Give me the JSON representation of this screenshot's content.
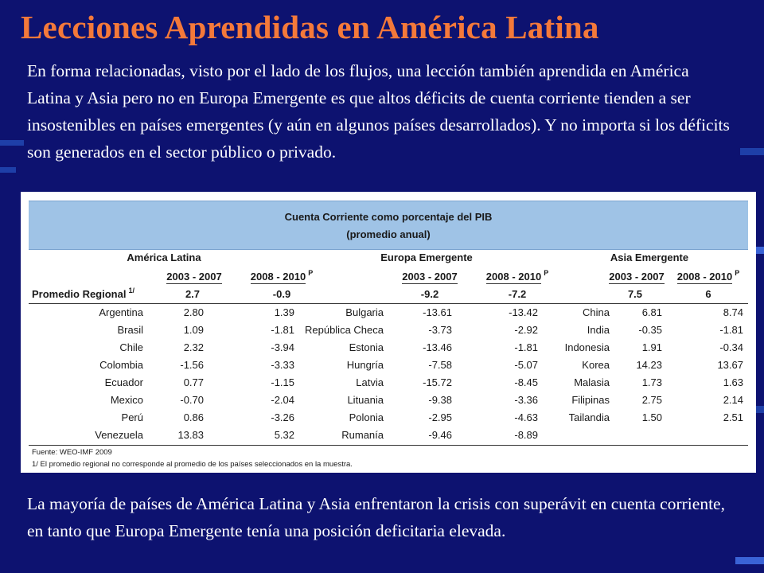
{
  "title": "Lecciones Aprendidas en América Latina",
  "intro": "En forma relacionadas, visto por el lado de los flujos, una lección también aprendida en América Latina y Asia pero no en Europa Emergente es que altos déficits de cuenta corriente tienden a ser insostenibles en países emergentes (y aún en algunos países desarrollados). Y no importa si los déficits son generados en el sector público o privado.",
  "conclusion": "La mayoría de países de América Latina y Asia enfrentaron la crisis con superávit en cuenta corriente, en tanto que Europa Emergente tenía una posición deficitaria elevada.",
  "table": {
    "title_line1": "Cuenta Corriente como porcentaje del PIB",
    "title_line2": "(promedio anual)",
    "groups": [
      "América Latina",
      "Europa Emergente",
      "Asia Emergente"
    ],
    "period1": "2003 - 2007",
    "period2": "2008 - 2010",
    "period2_note": "P",
    "regional_label": "Promedio Regional",
    "regional_note": "1/",
    "regional": {
      "latam": [
        "2.7",
        "-0.9"
      ],
      "europe": [
        "-9.2",
        "-7.2"
      ],
      "asia": [
        "7.5",
        "6"
      ]
    },
    "rows": [
      {
        "latam": [
          "Argentina",
          "2.80",
          "1.39"
        ],
        "europe": [
          "Bulgaria",
          "-13.61",
          "-13.42"
        ],
        "asia": [
          "China",
          "6.81",
          "8.74"
        ]
      },
      {
        "latam": [
          "Brasil",
          "1.09",
          "-1.81"
        ],
        "europe": [
          "República Checa",
          "-3.73",
          "-2.92"
        ],
        "asia": [
          "India",
          "-0.35",
          "-1.81"
        ]
      },
      {
        "latam": [
          "Chile",
          "2.32",
          "-3.94"
        ],
        "europe": [
          "Estonia",
          "-13.46",
          "-1.81"
        ],
        "asia": [
          "Indonesia",
          "1.91",
          "-0.34"
        ]
      },
      {
        "latam": [
          "Colombia",
          "-1.56",
          "-3.33"
        ],
        "europe": [
          "Hungría",
          "-7.58",
          "-5.07"
        ],
        "asia": [
          "Korea",
          "14.23",
          "13.67"
        ]
      },
      {
        "latam": [
          "Ecuador",
          "0.77",
          "-1.15"
        ],
        "europe": [
          "Latvia",
          "-15.72",
          "-8.45"
        ],
        "asia": [
          "Malasia",
          "1.73",
          "1.63"
        ]
      },
      {
        "latam": [
          "Mexico",
          "-0.70",
          "-2.04"
        ],
        "europe": [
          "Lituania",
          "-9.38",
          "-3.36"
        ],
        "asia": [
          "Filipinas",
          "2.75",
          "2.14"
        ]
      },
      {
        "latam": [
          "Perú",
          "0.86",
          "-3.26"
        ],
        "europe": [
          "Polonia",
          "-2.95",
          "-4.63"
        ],
        "asia": [
          "Tailandia",
          "1.50",
          "2.51"
        ]
      },
      {
        "latam": [
          "Venezuela",
          "13.83",
          "5.32"
        ],
        "europe": [
          "Rumanía",
          "-9.46",
          "-8.89"
        ],
        "asia": [
          "",
          "",
          ""
        ]
      }
    ],
    "source": "Fuente: WEO-IMF 2009",
    "note": "1/ El promedio regional no corresponde al promedio de los países seleccionados en la muestra."
  }
}
